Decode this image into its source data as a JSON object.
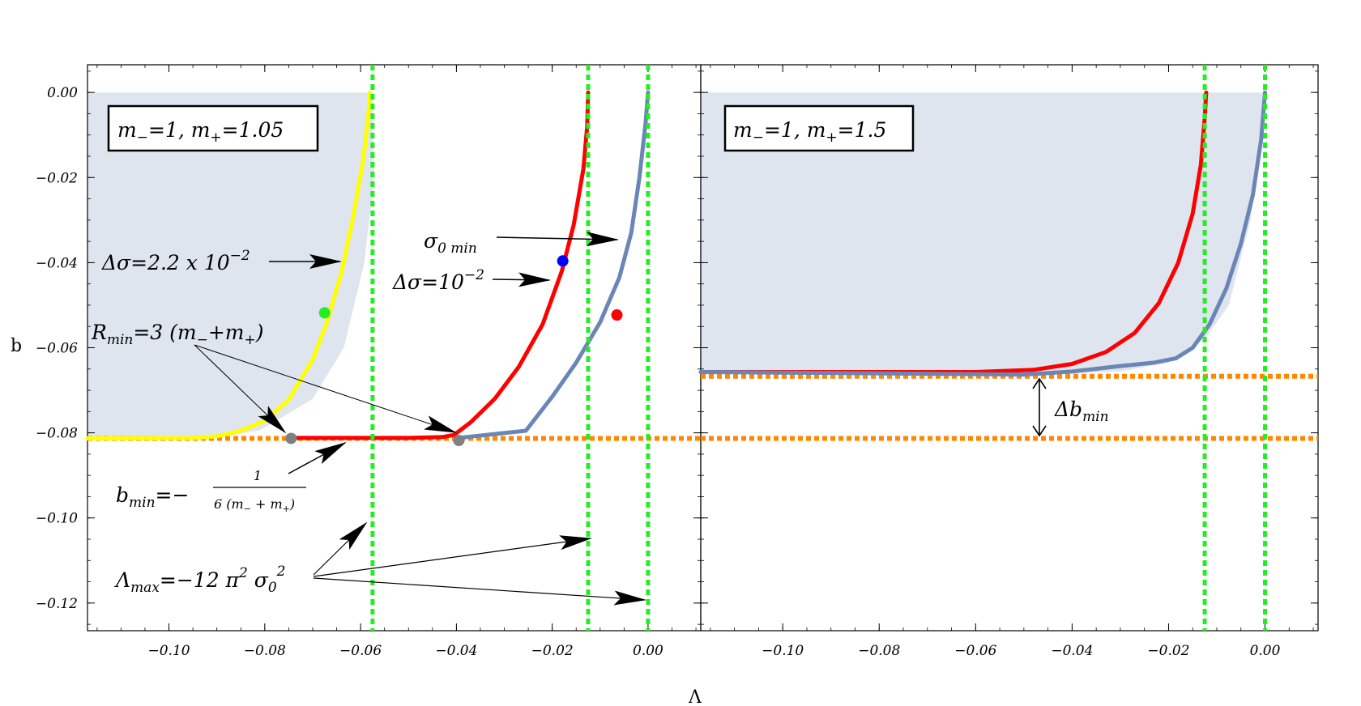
{
  "colors": {
    "region": "#dfe5ef",
    "yellow": "#ffff00",
    "red": "#ff0000",
    "blue_curve": "#6a86b7",
    "green": "#22ee22",
    "orange": "#ff8800",
    "dot_green": "#22ee22",
    "dot_blue": "#0000ff",
    "dot_red": "#ff0000",
    "dot_gray": "#808080"
  },
  "chart_data": [
    {
      "type": "line",
      "panel": "left",
      "xlabel": "Λ",
      "ylabel": "b",
      "xlim": [
        -0.117,
        0.011
      ],
      "ylim": [
        -0.1265,
        0.0065
      ],
      "x_ticks": [
        -0.1,
        -0.08,
        -0.06,
        -0.04,
        -0.02,
        0.0
      ],
      "x_tick_labels": [
        "−0.10",
        "−0.08",
        "−0.06",
        "−0.04",
        "−0.02",
        "0.00"
      ],
      "y_ticks": [
        0.0,
        -0.02,
        -0.04,
        -0.06,
        -0.08,
        -0.1,
        -0.12
      ],
      "y_tick_labels": [
        "0.00",
        "−0.02",
        "−0.04",
        "−0.06",
        "−0.08",
        "−0.10",
        "−0.12"
      ],
      "legend_box": {
        "text_left": "m",
        "sub1": "−",
        "mid": "=1,  m",
        "sub2": "+",
        "text_right": "=1.05"
      },
      "region": {
        "points": [
          [
            -0.117,
            0.0
          ],
          [
            -0.0575,
            0.0
          ],
          [
            -0.0572,
            -0.02
          ],
          [
            -0.0592,
            -0.04
          ],
          [
            -0.0635,
            -0.06
          ],
          [
            -0.07,
            -0.072
          ],
          [
            -0.081,
            -0.0794
          ],
          [
            -0.09,
            -0.0811
          ],
          [
            -0.117,
            -0.0813
          ],
          [
            -0.117,
            0.0
          ]
        ]
      },
      "series": [
        {
          "color": "yellow",
          "points": [
            [
              -0.117,
              -0.0813
            ],
            [
              -0.095,
              -0.0812
            ],
            [
              -0.09,
              -0.0808
            ],
            [
              -0.085,
              -0.0795
            ],
            [
              -0.08,
              -0.0772
            ],
            [
              -0.075,
              -0.0722
            ],
            [
              -0.07,
              -0.0628
            ],
            [
              -0.067,
              -0.054
            ],
            [
              -0.064,
              -0.0423
            ],
            [
              -0.0615,
              -0.029
            ],
            [
              -0.0595,
              -0.016
            ],
            [
              -0.0585,
              -0.007
            ],
            [
              -0.058,
              0.0
            ]
          ]
        },
        {
          "color": "red",
          "points": [
            [
              -0.0745,
              -0.0812
            ],
            [
              -0.05,
              -0.0812
            ],
            [
              -0.043,
              -0.081
            ],
            [
              -0.0405,
              -0.0805
            ],
            [
              -0.037,
              -0.0775
            ],
            [
              -0.032,
              -0.072
            ],
            [
              -0.027,
              -0.0645
            ],
            [
              -0.022,
              -0.0545
            ],
            [
              -0.018,
              -0.042
            ],
            [
              -0.0155,
              -0.031
            ],
            [
              -0.0135,
              -0.018
            ],
            [
              -0.0127,
              -0.008
            ],
            [
              -0.0125,
              0.0
            ]
          ]
        },
        {
          "color": "blue_curve",
          "points": [
            [
              -0.0395,
              -0.0812
            ],
            [
              -0.0255,
              -0.0795
            ],
            [
              -0.02,
              -0.0715
            ],
            [
              -0.015,
              -0.0635
            ],
            [
              -0.01,
              -0.054
            ],
            [
              -0.006,
              -0.0435
            ],
            [
              -0.0035,
              -0.033
            ],
            [
              -0.0018,
              -0.02
            ],
            [
              -0.0005,
              -0.007
            ],
            [
              0.0,
              0.0
            ]
          ]
        }
      ],
      "vlines": [
        -0.0575,
        -0.0125,
        0.0
      ],
      "hlines": [
        -0.0813
      ],
      "dots": [
        {
          "x": -0.0675,
          "y": -0.0518,
          "color": "dot_green"
        },
        {
          "x": -0.0178,
          "y": -0.0396,
          "color": "dot_blue"
        },
        {
          "x": -0.0065,
          "y": -0.0523,
          "color": "dot_red"
        },
        {
          "x": -0.0745,
          "y": -0.0813,
          "color": "dot_gray"
        },
        {
          "x": -0.0395,
          "y": -0.0818,
          "color": "dot_gray"
        }
      ]
    },
    {
      "type": "line",
      "panel": "right",
      "xlabel": "",
      "ylabel": "",
      "xlim": [
        -0.117,
        0.011
      ],
      "ylim": [
        -0.1265,
        0.0065
      ],
      "x_ticks": [
        -0.1,
        -0.08,
        -0.06,
        -0.04,
        -0.02,
        0.0
      ],
      "x_tick_labels": [
        "−0.10",
        "−0.08",
        "−0.06",
        "−0.04",
        "−0.02",
        "0.00"
      ],
      "y_ticks": [
        0.0,
        -0.02,
        -0.04,
        -0.06,
        -0.08,
        -0.1,
        -0.12
      ],
      "legend_box": {
        "text_left": "m",
        "sub1": "−",
        "mid": "=1,  m",
        "sub2": "+",
        "text_right": "=1.5"
      },
      "region": {
        "points": [
          [
            -0.117,
            0.0
          ],
          [
            0.0,
            0.0
          ],
          [
            -0.0005,
            -0.009
          ],
          [
            -0.003,
            -0.03
          ],
          [
            -0.0075,
            -0.05
          ],
          [
            -0.0125,
            -0.058
          ],
          [
            -0.02,
            -0.0635
          ],
          [
            -0.03,
            -0.0656
          ],
          [
            -0.05,
            -0.0664
          ],
          [
            -0.117,
            -0.0657
          ],
          [
            -0.117,
            0.0
          ]
        ]
      },
      "series": [
        {
          "color": "red",
          "points": [
            [
              -0.117,
              -0.0657
            ],
            [
              -0.06,
              -0.0657
            ],
            [
              -0.048,
              -0.0652
            ],
            [
              -0.04,
              -0.0638
            ],
            [
              -0.033,
              -0.061
            ],
            [
              -0.027,
              -0.0565
            ],
            [
              -0.022,
              -0.0495
            ],
            [
              -0.018,
              -0.04
            ],
            [
              -0.015,
              -0.0285
            ],
            [
              -0.0133,
              -0.017
            ],
            [
              -0.0125,
              -0.006
            ],
            [
              -0.0122,
              0.0
            ]
          ]
        },
        {
          "color": "blue_curve",
          "points": [
            [
              -0.117,
              -0.0657
            ],
            [
              -0.05,
              -0.0663
            ],
            [
              -0.04,
              -0.0656
            ],
            [
              -0.03,
              -0.0643
            ],
            [
              -0.023,
              -0.0635
            ],
            [
              -0.0185,
              -0.0625
            ],
            [
              -0.015,
              -0.06
            ],
            [
              -0.0115,
              -0.0545
            ],
            [
              -0.008,
              -0.046
            ],
            [
              -0.005,
              -0.0355
            ],
            [
              -0.0025,
              -0.024
            ],
            [
              -0.0008,
              -0.011
            ],
            [
              0.0,
              0.0
            ]
          ]
        }
      ],
      "vlines": [
        -0.0125,
        0.0
      ],
      "hlines": [
        -0.0667,
        -0.0813
      ]
    }
  ],
  "annotations": {
    "delta_sigma_1": {
      "main": "Δσ=2.2 x 10",
      "sup": "−2"
    },
    "sigma0_min": {
      "main": "σ",
      "sub": "0  min"
    },
    "delta_sigma_2": {
      "main": "Δσ=10",
      "sup": "−2"
    },
    "r_min": {
      "main": "R",
      "sub": "min",
      "rest": "=3 (m",
      "sub1": "−",
      "mid": "+m",
      "sub2": "+",
      "end": ")"
    },
    "b_min": {
      "main": "b",
      "sub": "min",
      "eq": "=−",
      "num": "1",
      "den": "6 (m  + m )",
      "den_sub1": "−",
      "den_sub2": "+"
    },
    "lambda_max": {
      "main": "Λ",
      "sub": "max",
      "rest": "=−12 π",
      "sup1": "2",
      "sigma": " σ",
      "sub0": "0",
      "sup2": "2"
    },
    "delta_b_min": {
      "main": "Δb",
      "sub": "min"
    }
  }
}
